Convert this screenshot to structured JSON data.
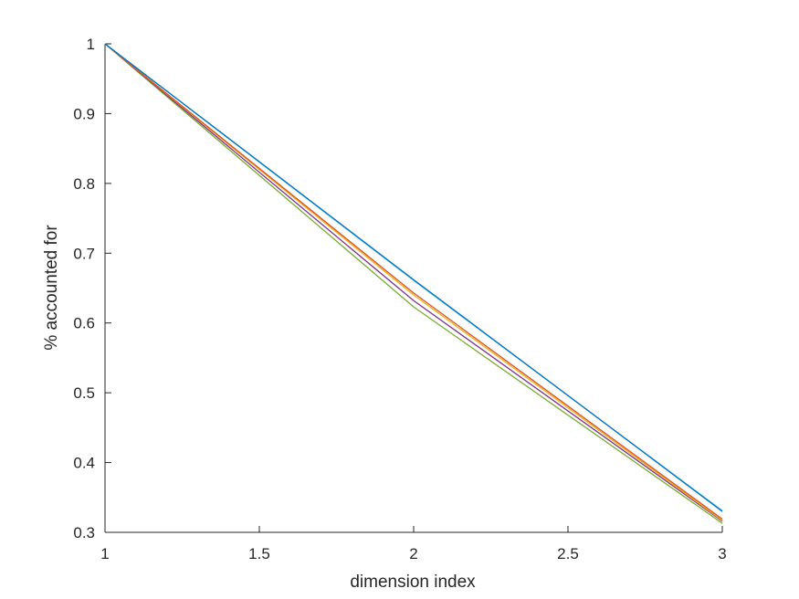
{
  "chart_data": {
    "type": "line",
    "title": "",
    "xlabel": "dimension index",
    "ylabel": "% accounted for",
    "xlim": [
      1,
      3
    ],
    "ylim": [
      0.3,
      1
    ],
    "xticks": [
      1,
      1.5,
      2,
      2.5,
      3
    ],
    "xtick_labels": [
      "1",
      "1.5",
      "2",
      "2.5",
      "3"
    ],
    "yticks": [
      0.3,
      0.4,
      0.5,
      0.6,
      0.7,
      0.8,
      0.9,
      1
    ],
    "ytick_labels": [
      "0.3",
      "0.4",
      "0.5",
      "0.6",
      "0.7",
      "0.8",
      "0.9",
      "1"
    ],
    "grid": false,
    "legend": "none",
    "x": [
      1,
      2,
      3
    ],
    "series": [
      {
        "color": "#77ac30",
        "values": [
          1,
          0.623,
          0.313
        ]
      },
      {
        "color": "#7e2f8e",
        "values": [
          1,
          0.632,
          0.316
        ]
      },
      {
        "color": "#edb120",
        "values": [
          1,
          0.64,
          0.317
        ]
      },
      {
        "color": "#d95319",
        "values": [
          1,
          0.643,
          0.319
        ]
      },
      {
        "color": "#4dbeee",
        "values": [
          1,
          0.661,
          0.331
        ]
      },
      {
        "color": "#0072bd",
        "values": [
          1,
          0.662,
          0.33
        ]
      }
    ]
  }
}
